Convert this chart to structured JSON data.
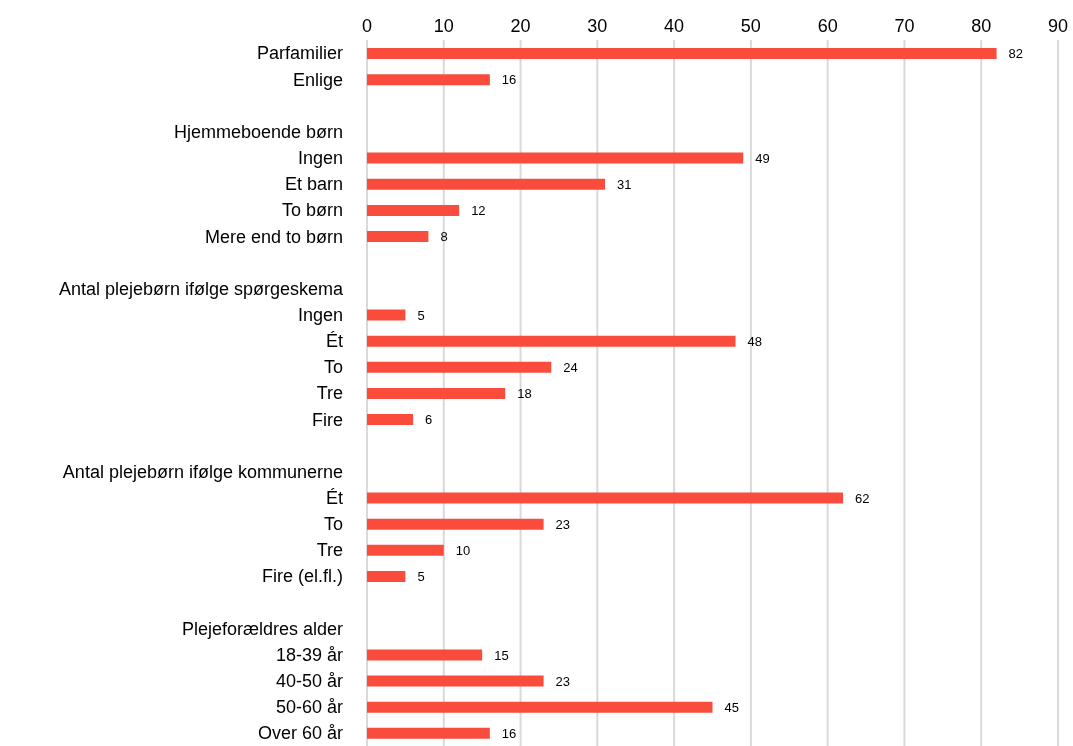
{
  "chart_data": {
    "type": "bar",
    "orientation": "horizontal",
    "categories": [
      "Parfamilier",
      "Enlige",
      null,
      "Hjemmeboende børn",
      "Ingen",
      "Et barn",
      "To børn",
      "Mere end to børn",
      null,
      "Antal plejebørn ifølge spørgeskema",
      "Ingen",
      "Ét",
      "To",
      "Tre",
      "Fire",
      null,
      "Antal plejebørn ifølge kommunerne",
      "Ét",
      "To",
      "Tre",
      "Fire (el.fl.)",
      null,
      "Plejeforældres alder",
      "18-39 år",
      "40-50 år",
      "50-60 år",
      "Over 60 år"
    ],
    "values": [
      82,
      16,
      null,
      null,
      49,
      31,
      12,
      8,
      null,
      null,
      5,
      48,
      24,
      18,
      6,
      null,
      null,
      62,
      23,
      10,
      5,
      null,
      null,
      15,
      23,
      45,
      16
    ],
    "color": "#f94c3c",
    "xlim": [
      0,
      90
    ],
    "xticks": [
      0,
      10,
      20,
      30,
      40,
      50,
      60,
      70,
      80,
      90
    ],
    "grid": "x",
    "data_labels": true
  }
}
